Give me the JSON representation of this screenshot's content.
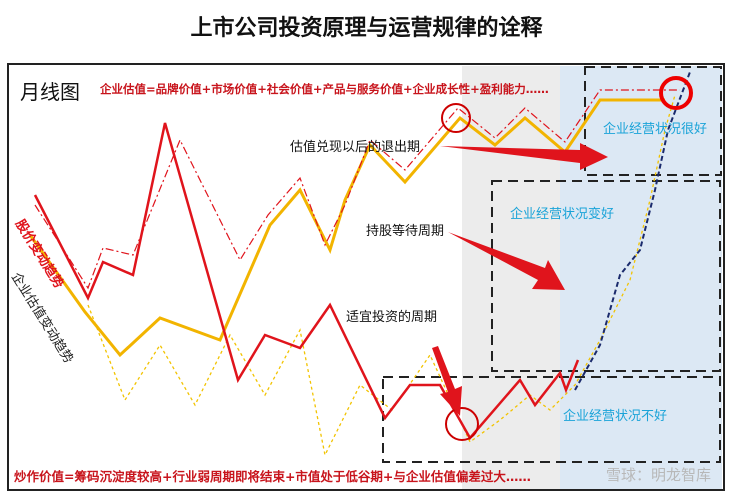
{
  "title": "上市公司投资原理与运营规律的诠释",
  "chart_label": "月线图",
  "valuation_formula": "企业估值=品牌价值+市场价值+社会价值+产品与服务价值+企业成长性+盈利能力……",
  "speculation_formula": "炒作价值=筹码沉淀度较高+行业弱周期即将结束+市值处于低谷期+与企业估值偏差过大……",
  "legend": {
    "price_trend": "股价变动趋势",
    "valuation_trend": "企业估值变动趋势"
  },
  "annotations": {
    "exit": "估值兑现以后的退出期",
    "hold": "持股等待周期",
    "invest": "适宜投资的周期"
  },
  "states": {
    "very_good": "企业经营状况很好",
    "improving": "企业经营状况变好",
    "bad": "企业经营状况不好"
  },
  "watermark": "雪球：明龙智库",
  "colors": {
    "red": "#e0141c",
    "yellow": "#f2b400",
    "blue_text": "#1aa3d8",
    "gray_zone": "#ececec",
    "blue_zone": "#dce8f4"
  }
}
